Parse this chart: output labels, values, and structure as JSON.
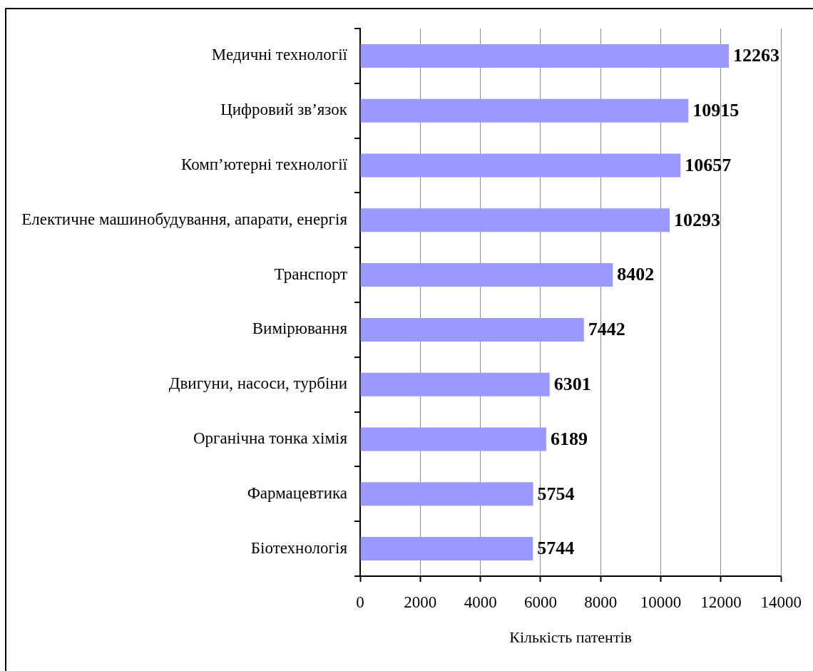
{
  "chart_data": {
    "type": "bar",
    "orientation": "horizontal",
    "categories": [
      "Медичні технології",
      "Цифровий зв’язок",
      "Комп’ютерні технології",
      "Електичне машинобудування, апарати, енергія",
      "Транспорт",
      "Вимірювання",
      "Двигуни, насоси, турбіни",
      "Органічна тонка хімія",
      "Фармацевтика",
      "Біотехнологія"
    ],
    "values": [
      12263,
      10915,
      10657,
      10293,
      8402,
      7442,
      6301,
      6189,
      5754,
      5744
    ],
    "color": "#9999ff",
    "xlabel": "Кількість патентів",
    "xlim": [
      0,
      14000
    ],
    "xticks": [
      0,
      2000,
      4000,
      6000,
      8000,
      10000,
      12000,
      14000
    ],
    "grid": "x",
    "data_labels": true
  }
}
